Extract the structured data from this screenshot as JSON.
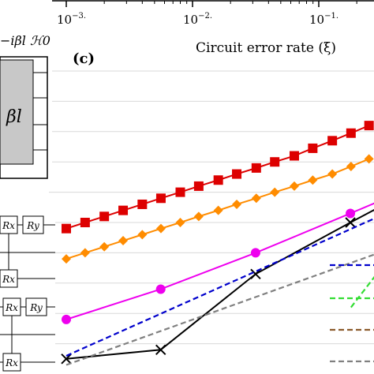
{
  "top_axis": {
    "tick_labels": [
      "10",
      "10",
      "10"
    ],
    "tick_exponents": [
      "−3.",
      "−2.",
      "−1."
    ],
    "xlabel": "Circuit error rate (ξ)",
    "xscale": "log",
    "xlim": [
      0.001,
      0.3
    ]
  },
  "panel_label": "(c)",
  "schematic": {
    "header": "−iβl ℋ0",
    "block_label": "βl",
    "gates": [
      "Rx",
      "Ry",
      "Rx",
      "Rx",
      "Ry",
      "Rx"
    ]
  },
  "chart_data": {
    "type": "line",
    "xscale": "log",
    "ylim": [
      0,
      1
    ],
    "grid": true,
    "series": [
      {
        "color": "#dd0000",
        "marker": "square",
        "linestyle": "solid",
        "x": [
          0.001,
          0.00141,
          0.002,
          0.00282,
          0.004,
          0.00562,
          0.008,
          0.0112,
          0.016,
          0.0224,
          0.032,
          0.0448,
          0.064,
          0.0896,
          0.128,
          0.18,
          0.25
        ],
        "y": [
          0.48,
          0.5,
          0.52,
          0.54,
          0.56,
          0.58,
          0.6,
          0.62,
          0.64,
          0.66,
          0.68,
          0.7,
          0.72,
          0.745,
          0.77,
          0.795,
          0.82
        ]
      },
      {
        "color": "#ff8c00",
        "marker": "diamond",
        "linestyle": "solid",
        "x": [
          0.001,
          0.00141,
          0.002,
          0.00282,
          0.004,
          0.00562,
          0.008,
          0.0112,
          0.016,
          0.0224,
          0.032,
          0.0448,
          0.064,
          0.0896,
          0.128,
          0.18,
          0.25
        ],
        "y": [
          0.38,
          0.4,
          0.42,
          0.44,
          0.46,
          0.48,
          0.5,
          0.52,
          0.54,
          0.56,
          0.58,
          0.6,
          0.62,
          0.64,
          0.66,
          0.685,
          0.71
        ]
      },
      {
        "color": "#ee00ee",
        "marker": "circle",
        "linestyle": "solid",
        "x": [
          0.001,
          0.0056,
          0.0316,
          0.178,
          0.3
        ],
        "y": [
          0.18,
          0.28,
          0.4,
          0.53,
          0.57
        ]
      },
      {
        "color": "#000000",
        "marker": "x",
        "linestyle": "solid",
        "x": [
          0.001,
          0.0056,
          0.0316,
          0.178,
          0.3
        ],
        "y": [
          0.05,
          0.08,
          0.33,
          0.5,
          0.55
        ]
      },
      {
        "color": "#0000cc",
        "marker": "none",
        "linestyle": "dashed",
        "x": [
          0.001,
          0.3
        ],
        "y": [
          0.06,
          0.52
        ]
      },
      {
        "color": "#808080",
        "marker": "none",
        "linestyle": "dashed",
        "x": [
          0.001,
          0.3
        ],
        "y": [
          0.03,
          0.4
        ]
      },
      {
        "color": "#33dd33",
        "marker": "none",
        "linestyle": "dashed",
        "x": [
          0.18,
          0.3
        ],
        "y": [
          0.22,
          0.34
        ]
      }
    ],
    "legend_lines": [
      {
        "color": "#0000cc"
      },
      {
        "color": "#33dd33"
      },
      {
        "color": "#8b5a2b"
      },
      {
        "color": "#808080"
      }
    ]
  }
}
